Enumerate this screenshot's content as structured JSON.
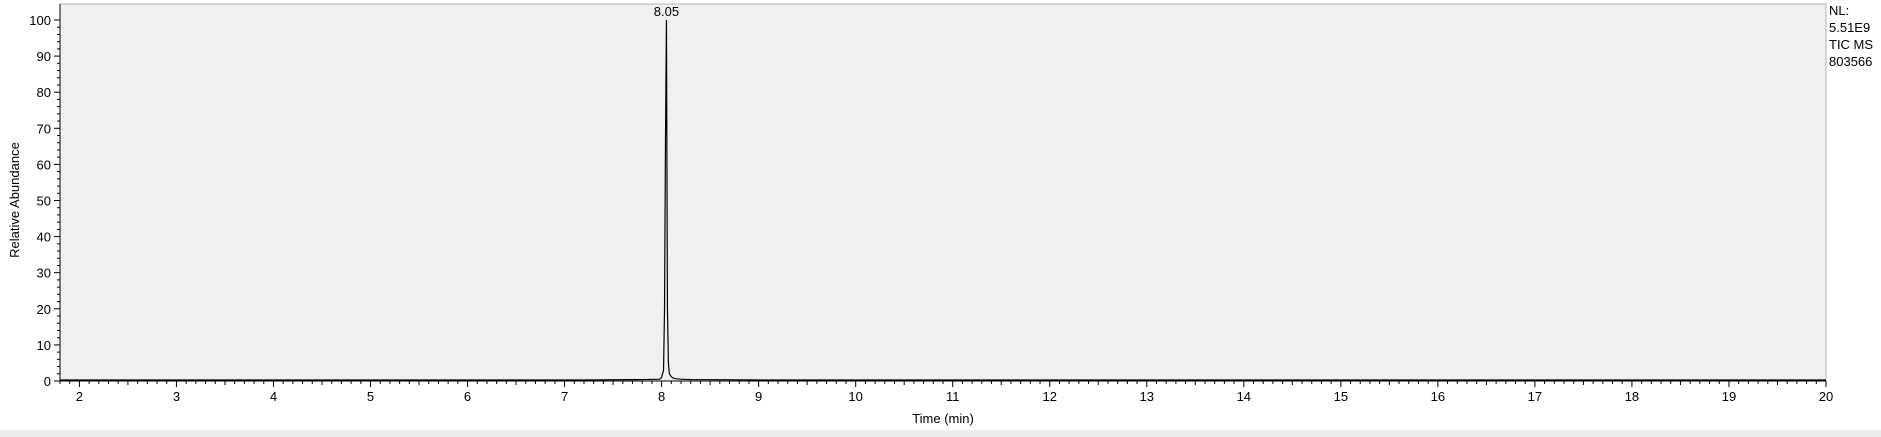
{
  "chart_data": {
    "type": "line",
    "xlabel": "Time (min)",
    "ylabel": "Relative Abundance",
    "xlim": [
      1.8,
      20.0
    ],
    "ylim": [
      0,
      100
    ],
    "x_ticks": [
      2,
      3,
      4,
      5,
      6,
      7,
      8,
      9,
      10,
      11,
      12,
      13,
      14,
      15,
      16,
      17,
      18,
      19,
      20
    ],
    "y_ticks": [
      0,
      10,
      20,
      30,
      40,
      50,
      60,
      70,
      80,
      90,
      100
    ],
    "grid": false,
    "plot_background": "#f0f0f0",
    "line_color": "#000000",
    "peak_labels": [
      {
        "text": "8.05",
        "x": 8.05,
        "y": 100
      }
    ],
    "annotation_lines": [
      "NL:",
      "5.51E9",
      "TIC  MS",
      "803566"
    ],
    "series": [
      {
        "x": [
          1.8,
          2.5,
          3.2,
          4.0,
          4.8,
          5.6,
          6.4,
          7.2,
          7.8,
          7.98,
          8.0,
          8.02,
          8.03,
          8.04,
          8.05,
          8.06,
          8.07,
          8.08,
          8.1,
          8.12,
          8.15,
          8.2,
          8.3,
          9.0,
          10.0,
          11.0,
          12.0,
          13.0,
          14.0,
          15.0,
          16.0,
          17.0,
          18.0,
          19.0,
          20.0
        ],
        "y": [
          0.3,
          0.3,
          0.3,
          0.3,
          0.3,
          0.3,
          0.3,
          0.3,
          0.4,
          0.5,
          1,
          3,
          20,
          67,
          100,
          20,
          5,
          2,
          1.2,
          0.8,
          0.6,
          0.5,
          0.4,
          0.3,
          0.3,
          0.3,
          0.3,
          0.3,
          0.3,
          0.3,
          0.3,
          0.3,
          0.3,
          0.3,
          0.3
        ]
      }
    ]
  }
}
